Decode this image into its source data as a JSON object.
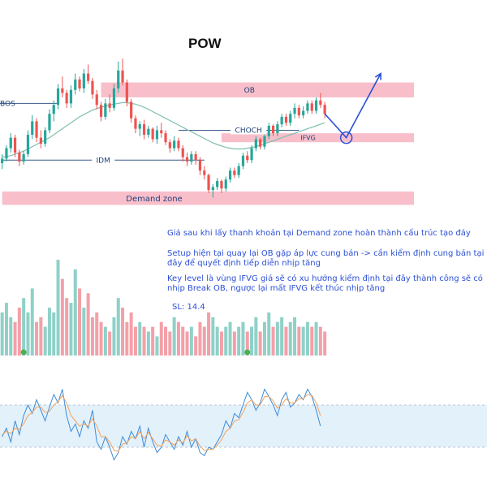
{
  "title": "POW",
  "colors": {
    "bull": "#26a69a",
    "bear": "#ef5350",
    "zone": "#f7b8c4",
    "ma": "#7fbfb0",
    "annotation": "#2b4fd6",
    "rsi_band": "#e3f1fb",
    "rsi_line": "#3c8bd9",
    "rsi_signal": "#f2a25c"
  },
  "labels": {
    "bos": "BOS",
    "idm": "IDM",
    "choch": "CHOCH",
    "ob": "OB",
    "ifvg": "IFVG",
    "demand_zone": "Demand zone"
  },
  "notes": {
    "line1": "Giá sau khi lấy thanh khoản tại Demand zone hoàn thành cấu trúc tạo đáy",
    "line2": "Setup hiện tại quay lại OB gặp áp lực cung bán -> cần kiểm định cung bán tại đây để quyết định tiếp diễn nhịp tăng",
    "line3": "Key level là vùng IFVG giá sẽ có xu hướng kiểm định tại đây thành công sẽ có nhịp Break OB, ngược lại mất IFVG kết thúc nhịp tăng",
    "line4": "SL: 14.4"
  },
  "chart_data": [
    {
      "type": "candlestick",
      "title": "POW",
      "ohlc": [
        [
          1,
          20.6,
          21.2,
          20.2,
          20.9
        ],
        [
          2,
          20.9,
          21.8,
          20.7,
          21.6
        ],
        [
          3,
          21.6,
          22.6,
          21.3,
          22.3
        ],
        [
          4,
          22.3,
          22.5,
          21.0,
          21.3
        ],
        [
          5,
          21.3,
          21.5,
          20.4,
          20.7
        ],
        [
          6,
          20.7,
          21.4,
          20.5,
          21.2
        ],
        [
          7,
          21.2,
          22.8,
          21.0,
          22.5
        ],
        [
          8,
          22.5,
          23.8,
          22.2,
          23.4
        ],
        [
          9,
          23.4,
          23.6,
          22.0,
          22.3
        ],
        [
          10,
          22.3,
          22.8,
          21.6,
          21.9
        ],
        [
          11,
          21.9,
          23.0,
          21.7,
          22.8
        ],
        [
          12,
          22.8,
          24.2,
          22.6,
          23.9
        ],
        [
          13,
          23.9,
          24.8,
          23.4,
          24.5
        ],
        [
          14,
          24.5,
          25.9,
          24.2,
          25.6
        ],
        [
          15,
          25.6,
          26.4,
          25.0,
          25.3
        ],
        [
          16,
          25.3,
          25.5,
          24.3,
          24.6
        ],
        [
          17,
          24.6,
          25.8,
          24.3,
          25.5
        ],
        [
          18,
          25.5,
          26.6,
          25.2,
          26.2
        ],
        [
          19,
          26.2,
          26.4,
          25.4,
          25.6
        ],
        [
          20,
          25.6,
          26.9,
          25.3,
          26.6
        ],
        [
          21,
          26.6,
          27.2,
          25.9,
          26.1
        ],
        [
          22,
          26.1,
          26.3,
          24.9,
          25.2
        ],
        [
          23,
          25.2,
          25.5,
          24.2,
          24.5
        ],
        [
          24,
          24.5,
          24.7,
          23.4,
          23.7
        ],
        [
          25,
          23.7,
          24.9,
          23.5,
          24.6
        ],
        [
          26,
          24.6,
          25.2,
          24.0,
          24.3
        ],
        [
          27,
          24.3,
          25.9,
          24.1,
          25.6
        ],
        [
          28,
          25.6,
          27.4,
          25.3,
          26.8
        ],
        [
          29,
          26.8,
          27.6,
          25.8,
          26.0
        ],
        [
          30,
          26.0,
          26.2,
          24.4,
          24.7
        ],
        [
          31,
          24.7,
          24.9,
          23.3,
          23.6
        ],
        [
          32,
          23.6,
          23.8,
          22.6,
          22.9
        ],
        [
          33,
          22.9,
          23.4,
          22.4,
          23.2
        ],
        [
          34,
          23.2,
          23.5,
          22.2,
          22.5
        ],
        [
          35,
          22.5,
          23.1,
          22.3,
          22.9
        ],
        [
          36,
          22.9,
          23.0,
          22.0,
          22.2
        ],
        [
          37,
          22.2,
          23.1,
          21.9,
          22.8
        ],
        [
          38,
          22.8,
          23.3,
          22.3,
          22.6
        ],
        [
          39,
          22.6,
          22.8,
          21.8,
          22.0
        ],
        [
          40,
          22.0,
          22.2,
          21.3,
          21.6
        ],
        [
          41,
          21.6,
          22.4,
          21.4,
          22.1
        ],
        [
          42,
          22.1,
          22.3,
          21.4,
          21.6
        ],
        [
          43,
          21.6,
          21.8,
          20.7,
          21.0
        ],
        [
          44,
          21.0,
          21.3,
          20.4,
          20.7
        ],
        [
          45,
          20.7,
          21.4,
          20.5,
          21.2
        ],
        [
          46,
          21.2,
          21.4,
          20.5,
          20.8
        ],
        [
          47,
          20.8,
          21.0,
          19.8,
          20.1
        ],
        [
          48,
          20.1,
          20.4,
          19.5,
          19.8
        ],
        [
          49,
          19.8,
          19.9,
          18.6,
          18.8
        ],
        [
          50,
          18.8,
          19.2,
          18.3,
          19.0
        ],
        [
          51,
          19.0,
          19.6,
          18.8,
          19.4
        ],
        [
          52,
          19.4,
          19.5,
          18.6,
          18.9
        ],
        [
          53,
          18.9,
          19.7,
          18.7,
          19.5
        ],
        [
          54,
          19.5,
          20.3,
          19.3,
          20.1
        ],
        [
          55,
          20.1,
          20.3,
          19.6,
          19.8
        ],
        [
          56,
          19.8,
          20.6,
          19.6,
          20.4
        ],
        [
          57,
          20.4,
          21.3,
          20.2,
          21.1
        ],
        [
          58,
          21.1,
          21.4,
          20.6,
          20.8
        ],
        [
          59,
          20.8,
          21.8,
          20.6,
          21.6
        ],
        [
          60,
          21.6,
          22.4,
          21.4,
          22.2
        ],
        [
          61,
          22.2,
          22.3,
          21.5,
          21.7
        ],
        [
          62,
          21.7,
          22.6,
          21.5,
          22.4
        ],
        [
          63,
          22.4,
          23.3,
          22.2,
          23.1
        ],
        [
          64,
          23.1,
          23.2,
          22.4,
          22.6
        ],
        [
          65,
          22.6,
          23.4,
          22.4,
          23.2
        ],
        [
          66,
          23.2,
          23.9,
          23.0,
          23.7
        ],
        [
          67,
          23.7,
          23.9,
          23.1,
          23.3
        ],
        [
          68,
          23.3,
          24.1,
          23.1,
          23.9
        ],
        [
          69,
          23.9,
          24.6,
          23.6,
          24.3
        ],
        [
          70,
          24.3,
          24.5,
          23.6,
          23.8
        ],
        [
          71,
          23.8,
          24.4,
          23.6,
          24.1
        ],
        [
          72,
          24.1,
          24.8,
          23.9,
          24.6
        ],
        [
          73,
          24.6,
          24.8,
          23.9,
          24.1
        ],
        [
          74,
          24.1,
          25.0,
          23.9,
          24.8
        ],
        [
          75,
          24.8,
          25.3,
          24.3,
          24.5
        ],
        [
          76,
          24.5,
          24.7,
          23.6,
          23.9
        ]
      ],
      "volume": [
        [
          1,
          0.45
        ],
        [
          2,
          0.55
        ],
        [
          3,
          0.4
        ],
        [
          4,
          0.35
        ],
        [
          5,
          0.5
        ],
        [
          6,
          0.6
        ],
        [
          7,
          0.45
        ],
        [
          8,
          0.7
        ],
        [
          9,
          0.35
        ],
        [
          10,
          0.4
        ],
        [
          11,
          0.3
        ],
        [
          12,
          0.5
        ],
        [
          13,
          0.45
        ],
        [
          14,
          1.0
        ],
        [
          15,
          0.8
        ],
        [
          16,
          0.6
        ],
        [
          17,
          0.55
        ],
        [
          18,
          0.9
        ],
        [
          19,
          0.7
        ],
        [
          20,
          0.5
        ],
        [
          21,
          0.65
        ],
        [
          22,
          0.4
        ],
        [
          23,
          0.45
        ],
        [
          24,
          0.35
        ],
        [
          25,
          0.3
        ],
        [
          26,
          0.25
        ],
        [
          27,
          0.4
        ],
        [
          28,
          0.6
        ],
        [
          29,
          0.5
        ],
        [
          30,
          0.35
        ],
        [
          31,
          0.45
        ],
        [
          32,
          0.3
        ],
        [
          33,
          0.35
        ],
        [
          34,
          0.3
        ],
        [
          35,
          0.25
        ],
        [
          36,
          0.3
        ],
        [
          37,
          0.2
        ],
        [
          38,
          0.35
        ],
        [
          39,
          0.3
        ],
        [
          40,
          0.25
        ],
        [
          41,
          0.4
        ],
        [
          42,
          0.35
        ],
        [
          43,
          0.3
        ],
        [
          44,
          0.25
        ],
        [
          45,
          0.3
        ],
        [
          46,
          0.2
        ],
        [
          47,
          0.35
        ],
        [
          48,
          0.3
        ],
        [
          49,
          0.45
        ],
        [
          50,
          0.4
        ],
        [
          51,
          0.3
        ],
        [
          52,
          0.25
        ],
        [
          53,
          0.3
        ],
        [
          54,
          0.35
        ],
        [
          55,
          0.25
        ],
        [
          56,
          0.3
        ],
        [
          57,
          0.35
        ],
        [
          58,
          0.25
        ],
        [
          59,
          0.3
        ],
        [
          60,
          0.4
        ],
        [
          61,
          0.25
        ],
        [
          62,
          0.35
        ],
        [
          63,
          0.45
        ],
        [
          64,
          0.3
        ],
        [
          65,
          0.35
        ],
        [
          66,
          0.4
        ],
        [
          67,
          0.3
        ],
        [
          68,
          0.35
        ],
        [
          69,
          0.4
        ],
        [
          70,
          0.3
        ],
        [
          71,
          0.3
        ],
        [
          72,
          0.35
        ],
        [
          73,
          0.3
        ],
        [
          74,
          0.35
        ],
        [
          75,
          0.3
        ],
        [
          76,
          0.25
        ]
      ],
      "ma": [
        21.0,
        21.05,
        21.1,
        21.2,
        21.3,
        21.4,
        21.55,
        21.7,
        21.85,
        22.0,
        22.15,
        22.3,
        22.5,
        22.7,
        22.9,
        23.1,
        23.3,
        23.5,
        23.7,
        23.85,
        24.0,
        24.15,
        24.25,
        24.35,
        24.4,
        24.5,
        24.55,
        24.6,
        24.65,
        24.65,
        24.6,
        24.55,
        24.45,
        24.35,
        24.2,
        24.05,
        23.9,
        23.75,
        23.6,
        23.45,
        23.3,
        23.15,
        23.0,
        22.85,
        22.7,
        22.55,
        22.4,
        22.25,
        22.1,
        21.95,
        21.85,
        21.75,
        21.65,
        21.6,
        21.55,
        21.55,
        21.55,
        21.6,
        21.65,
        21.7,
        21.8,
        21.9,
        22.0,
        22.1,
        22.2,
        22.3,
        22.4,
        22.5,
        22.6,
        22.7,
        22.8,
        22.9,
        23.0,
        23.1,
        23.2,
        23.3
      ],
      "zones": [
        {
          "name": "OB",
          "from": 25.0,
          "to": 26.0,
          "start": 24,
          "end": 90
        },
        {
          "name": "IFVG",
          "from": 22.0,
          "to": 22.6,
          "start": 52,
          "end": 90
        },
        {
          "name": "Demand zone",
          "from": 17.8,
          "to": 18.7,
          "start": 1,
          "end": 90
        }
      ],
      "levels": [
        {
          "name": "BOS",
          "value": 24.6,
          "start": 0,
          "end": 14
        },
        {
          "name": "IDM",
          "value": 20.8,
          "start": 1,
          "end": 48
        },
        {
          "name": "CHOCH",
          "value": 22.8,
          "start": 42,
          "end": 70
        }
      ],
      "projection": [
        [
          76,
          23.9
        ],
        [
          81,
          22.3
        ],
        [
          89,
          26.6
        ]
      ],
      "ylim": [
        17.5,
        30.0
      ]
    },
    {
      "type": "line",
      "series": [
        {
          "values": [
            40,
            48,
            35,
            55,
            42,
            60,
            70,
            62,
            75,
            65,
            55,
            68,
            80,
            72,
            85,
            60,
            45,
            52,
            40,
            55,
            48,
            65,
            35,
            28,
            40,
            30,
            18,
            25,
            40,
            33,
            45,
            38,
            50,
            30,
            48,
            35,
            25,
            30,
            42,
            35,
            28,
            40,
            32,
            45,
            30,
            38,
            25,
            22,
            30,
            28,
            35,
            42,
            55,
            48,
            62,
            58,
            70,
            82,
            75,
            65,
            72,
            85,
            78,
            70,
            60,
            75,
            82,
            68,
            72,
            80,
            75,
            85,
            78,
            65,
            50
          ]
        },
        {
          "values": [
            42,
            45,
            43,
            48,
            47,
            52,
            60,
            63,
            68,
            68,
            63,
            64,
            70,
            73,
            79,
            72,
            60,
            55,
            50,
            52,
            50,
            57,
            50,
            40,
            40,
            35,
            27,
            26,
            33,
            34,
            40,
            38,
            45,
            38,
            44,
            38,
            32,
            31,
            37,
            35,
            32,
            37,
            34,
            41,
            36,
            38,
            31,
            27,
            28,
            28,
            32,
            37,
            45,
            48,
            55,
            56,
            63,
            72,
            75,
            70,
            70,
            78,
            78,
            74,
            67,
            70,
            76,
            72,
            72,
            76,
            76,
            80,
            79,
            72,
            60
          ]
        }
      ],
      "ylim": [
        0,
        100
      ],
      "band": [
        30,
        70
      ]
    }
  ]
}
